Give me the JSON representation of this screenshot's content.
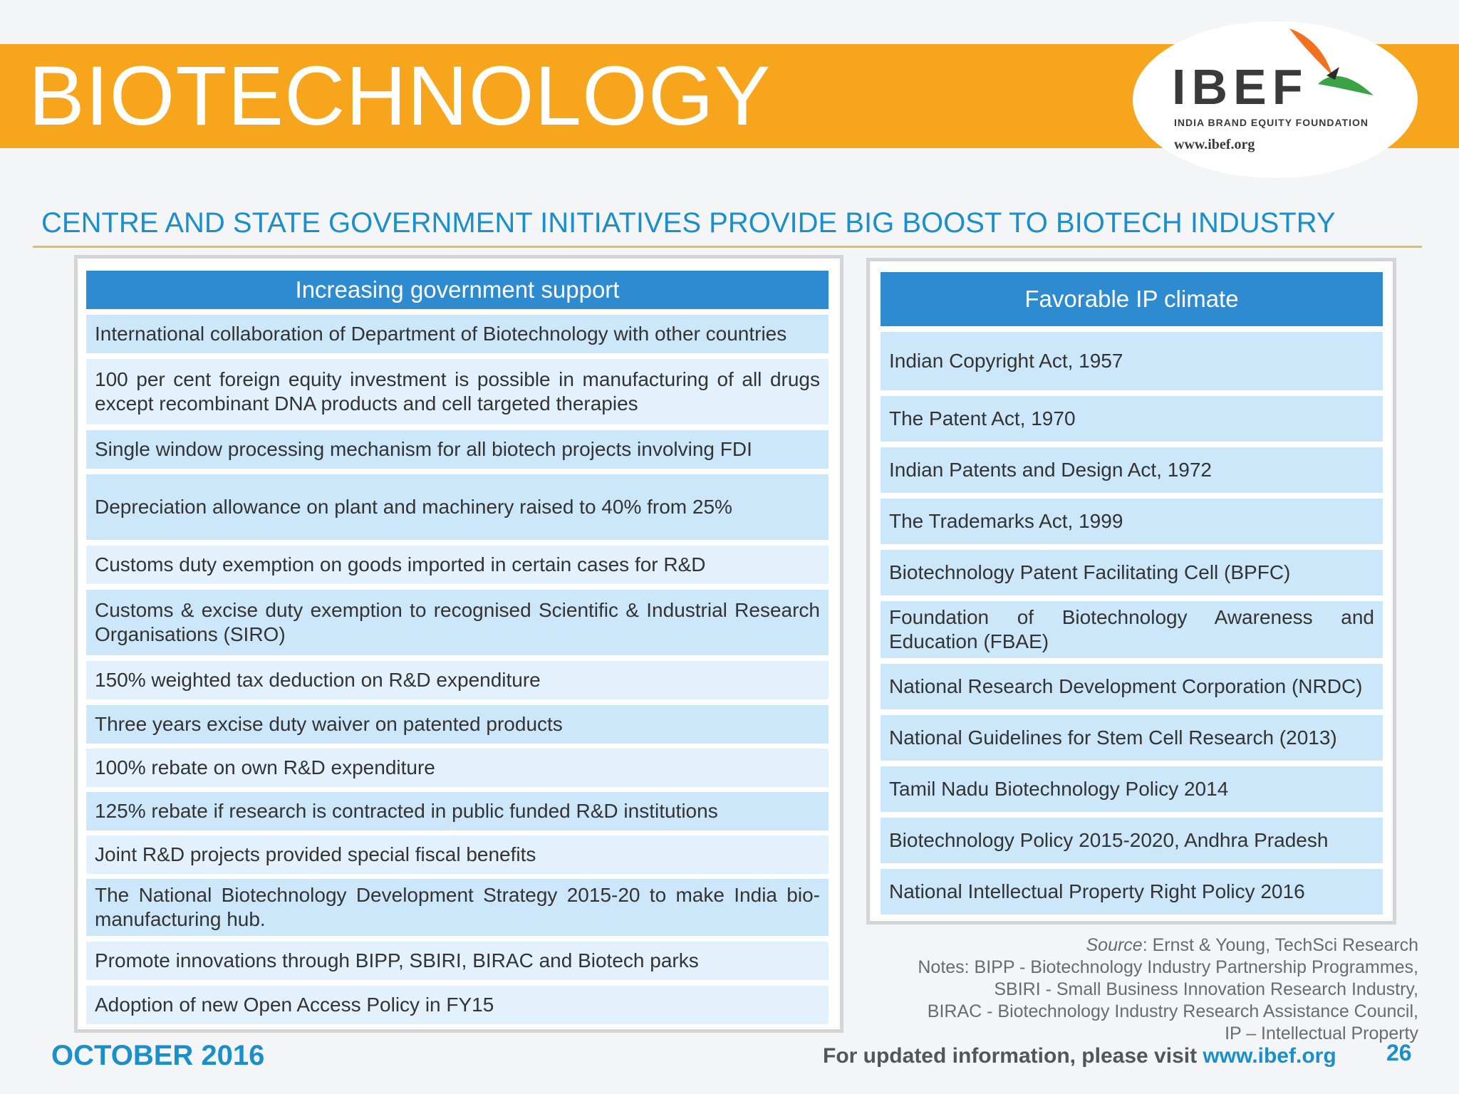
{
  "header": {
    "title": "BIOTECHNOLOGY",
    "brand_color": "#f7a51c"
  },
  "logo": {
    "name": "IBEF",
    "tagline": "INDIA BRAND EQUITY FOUNDATION",
    "url": "www.ibef.org",
    "icon": "bird-icon"
  },
  "subtitle": "CENTRE AND STATE GOVERNMENT INITIATIVES PROVIDE BIG BOOST TO BIOTECH INDUSTRY",
  "left_panel": {
    "heading": "Increasing government support",
    "items": [
      "International collaboration of Department of Biotechnology with other countries",
      "100 per cent foreign equity investment is possible in manufacturing of all drugs except recombinant DNA products and cell targeted therapies",
      "Single window processing mechanism for all biotech projects involving FDI",
      "Depreciation allowance on plant and machinery raised to 40% from 25%",
      "Customs duty exemption on goods imported in certain cases for R&D",
      "Customs & excise duty exemption to recognised Scientific & Industrial Research Organisations (SIRO)",
      "150% weighted tax deduction on R&D expenditure",
      "Three years excise duty waiver on patented products",
      "100% rebate on own R&D expenditure",
      "125% rebate if research is contracted in public funded R&D institutions",
      "Joint R&D projects provided special fiscal benefits",
      "The National Biotechnology Development Strategy 2015-20 to make India bio-manufacturing hub.",
      "Promote innovations through BIPP, SBIRI, BIRAC and Biotech parks",
      "Adoption of new Open Access Policy in FY15"
    ]
  },
  "right_panel": {
    "heading": "Favorable IP climate",
    "items": [
      "Indian Copyright Act, 1957",
      "The Patent Act, 1970",
      "Indian Patents and Design Act, 1972",
      "The Trademarks Act, 1999",
      "Biotechnology Patent Facilitating Cell (BPFC)",
      "Foundation of Biotechnology Awareness and Education (FBAE)",
      "National Research Development Corporation (NRDC)",
      "National Guidelines for Stem Cell Research (2013)",
      "Tamil Nadu Biotechnology Policy 2014",
      "Biotechnology Policy 2015-2020, Andhra Pradesh",
      "National Intellectual Property Right Policy 2016"
    ]
  },
  "notes": {
    "source_label": "Source",
    "source_text": ": Ernst & Young, TechSci Research",
    "lines": [
      "Notes: BIPP - Biotechnology Industry Partnership Programmes,",
      "SBIRI - Small Business Innovation Research Industry,",
      "BIRAC - Biotechnology Industry Research Assistance Council,",
      "IP – Intellectual Property"
    ]
  },
  "footer": {
    "date": "OCTOBER 2016",
    "visit_text": "For updated information, please visit ",
    "visit_link": "www.ibef.org",
    "page_number": "26"
  }
}
